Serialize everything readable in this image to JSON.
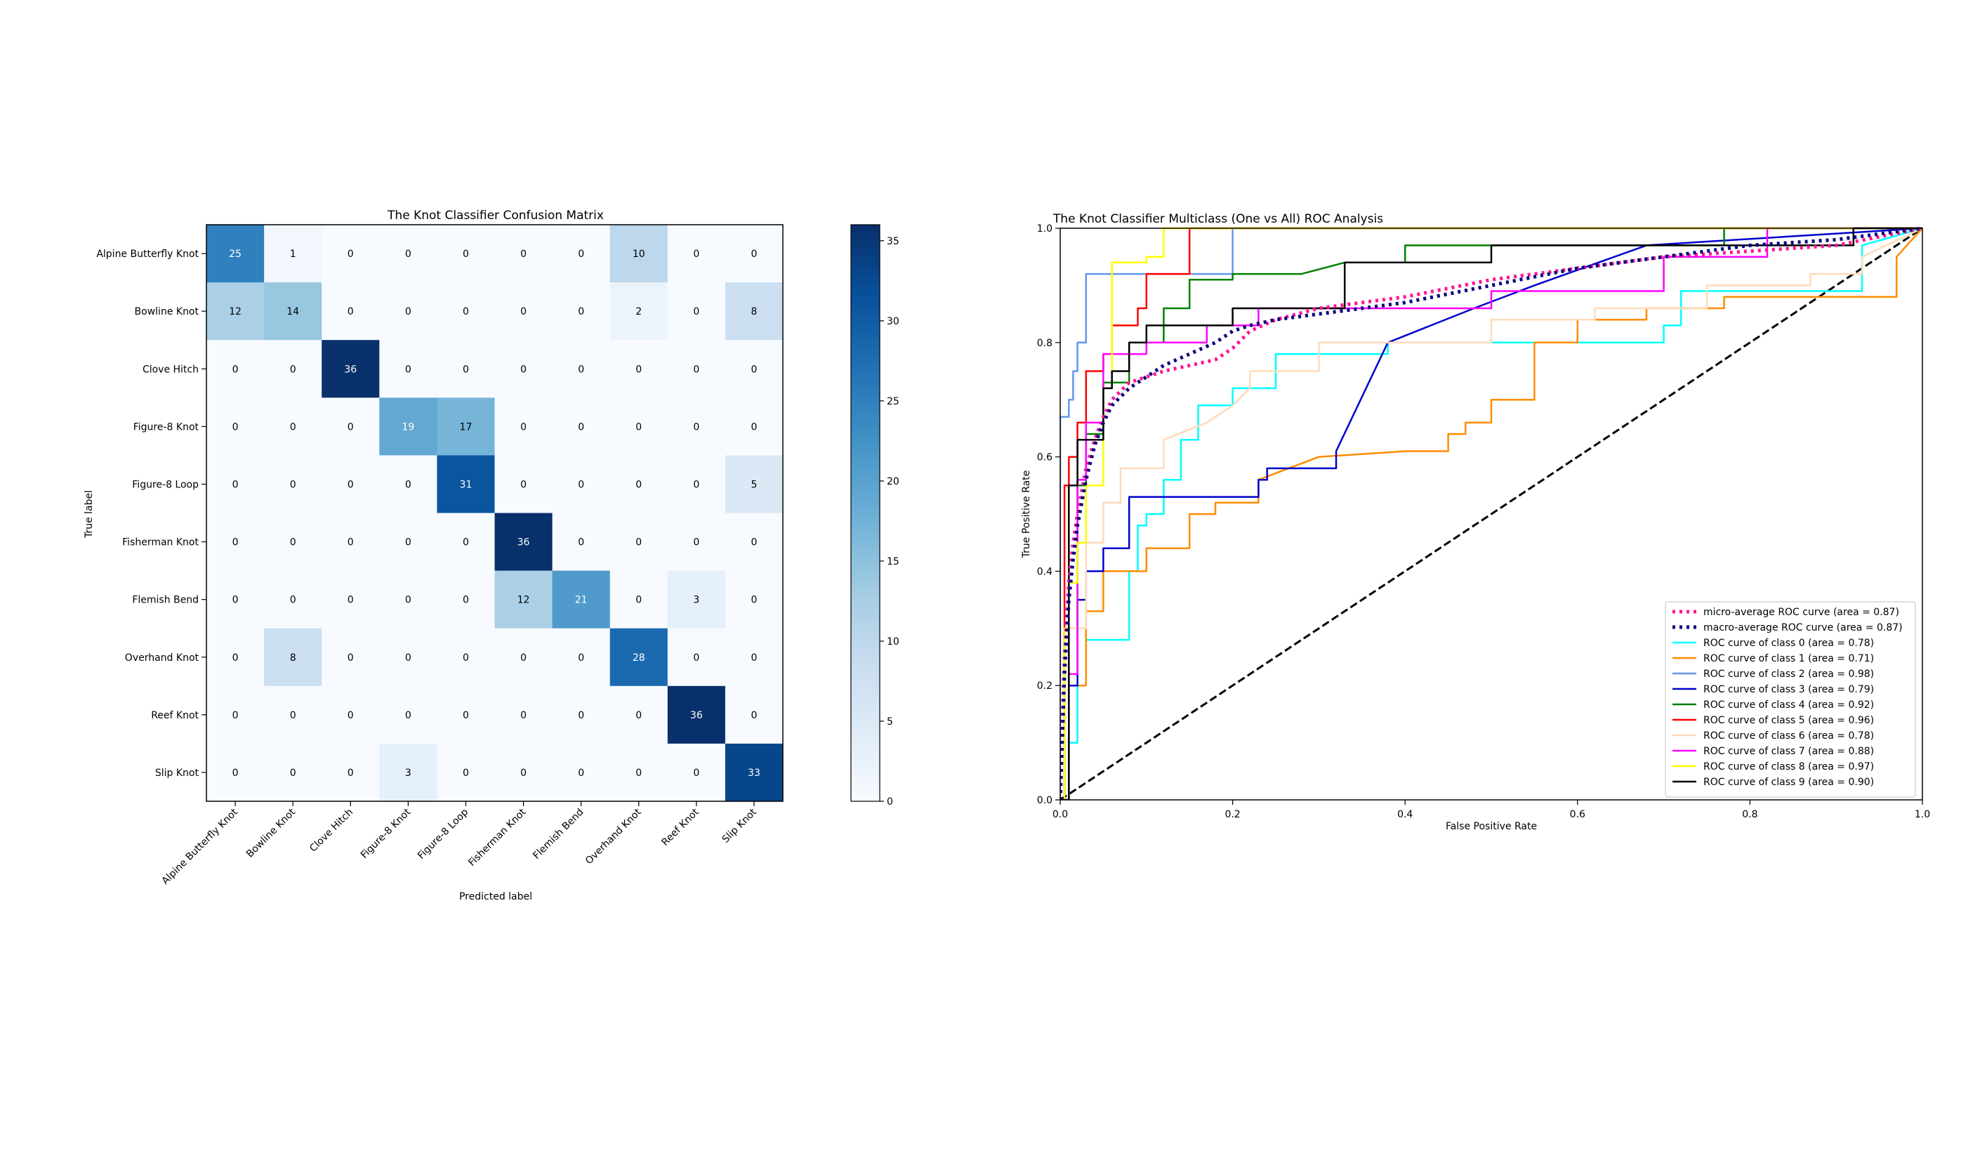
{
  "chart_data": [
    {
      "type": "heatmap",
      "title": "The Knot Classifier Confusion Matrix",
      "xlabel": "Predicted label",
      "ylabel": "True label",
      "categories": [
        "Alpine Butterfly Knot",
        "Bowline Knot",
        "Clove Hitch",
        "Figure-8 Knot",
        "Figure-8 Loop",
        "Fisherman Knot",
        "Flemish Bend",
        "Overhand Knot",
        "Reef Knot",
        "Slip Knot"
      ],
      "matrix": [
        [
          25,
          1,
          0,
          0,
          0,
          0,
          0,
          10,
          0,
          0
        ],
        [
          12,
          14,
          0,
          0,
          0,
          0,
          0,
          2,
          0,
          8
        ],
        [
          0,
          0,
          36,
          0,
          0,
          0,
          0,
          0,
          0,
          0
        ],
        [
          0,
          0,
          0,
          19,
          17,
          0,
          0,
          0,
          0,
          0
        ],
        [
          0,
          0,
          0,
          0,
          31,
          0,
          0,
          0,
          0,
          5
        ],
        [
          0,
          0,
          0,
          0,
          0,
          36,
          0,
          0,
          0,
          0
        ],
        [
          0,
          0,
          0,
          0,
          0,
          12,
          21,
          0,
          3,
          0
        ],
        [
          0,
          8,
          0,
          0,
          0,
          0,
          0,
          28,
          0,
          0
        ],
        [
          0,
          0,
          0,
          0,
          0,
          0,
          0,
          0,
          36,
          0
        ],
        [
          0,
          0,
          0,
          3,
          0,
          0,
          0,
          0,
          0,
          33
        ]
      ],
      "colormap": "Blues",
      "vmin": 0,
      "vmax": 36,
      "colorbar_ticks": [
        0,
        5,
        10,
        15,
        20,
        25,
        30,
        35
      ]
    },
    {
      "type": "line",
      "title": "The Knot Classifier Multiclass (One vs All) ROC Analysis",
      "xlabel": "False Positive Rate",
      "ylabel": "True Positive Rate",
      "xlim": [
        0.0,
        1.0
      ],
      "ylim": [
        0.0,
        1.0
      ],
      "xticks": [
        "0.0",
        "0.2",
        "0.4",
        "0.6",
        "0.8",
        "1.0"
      ],
      "yticks": [
        "0.0",
        "0.2",
        "0.4",
        "0.6",
        "0.8",
        "1.0"
      ],
      "legend_position": "lower right",
      "series": [
        {
          "name": "micro-average ROC curve (area = 0.87)",
          "color": "#ff1493",
          "style": "dotted",
          "width": 5,
          "x": [
            0,
            0.005,
            0.01,
            0.015,
            0.02,
            0.03,
            0.04,
            0.05,
            0.06,
            0.08,
            0.1,
            0.12,
            0.15,
            0.18,
            0.2,
            0.22,
            0.25,
            0.3,
            0.35,
            0.4,
            0.5,
            0.6,
            0.7,
            0.8,
            0.9,
            1.0
          ],
          "y": [
            0,
            0.25,
            0.38,
            0.45,
            0.5,
            0.58,
            0.63,
            0.67,
            0.7,
            0.73,
            0.74,
            0.75,
            0.76,
            0.77,
            0.79,
            0.82,
            0.84,
            0.86,
            0.87,
            0.88,
            0.91,
            0.93,
            0.95,
            0.96,
            0.97,
            1.0
          ]
        },
        {
          "name": "macro-average ROC curve (area = 0.87)",
          "color": "#000080",
          "style": "dotted",
          "width": 5,
          "x": [
            0,
            0.005,
            0.01,
            0.015,
            0.02,
            0.03,
            0.04,
            0.05,
            0.06,
            0.08,
            0.1,
            0.12,
            0.15,
            0.18,
            0.2,
            0.22,
            0.25,
            0.3,
            0.35,
            0.4,
            0.5,
            0.6,
            0.7,
            0.8,
            0.9,
            1.0
          ],
          "y": [
            0,
            0.22,
            0.35,
            0.42,
            0.48,
            0.56,
            0.62,
            0.66,
            0.69,
            0.72,
            0.74,
            0.76,
            0.78,
            0.8,
            0.82,
            0.83,
            0.84,
            0.85,
            0.86,
            0.87,
            0.9,
            0.93,
            0.95,
            0.97,
            0.98,
            1.0
          ]
        },
        {
          "name": "ROC curve of class 0 (area = 0.78)",
          "color": "#00ffff",
          "style": "solid",
          "width": 2.5,
          "x": [
            0,
            0.01,
            0.01,
            0.02,
            0.02,
            0.03,
            0.03,
            0.08,
            0.08,
            0.09,
            0.09,
            0.1,
            0.1,
            0.12,
            0.12,
            0.14,
            0.14,
            0.16,
            0.16,
            0.2,
            0.2,
            0.25,
            0.25,
            0.38,
            0.38,
            0.7,
            0.7,
            0.72,
            0.72,
            0.93,
            0.93,
            1.0
          ],
          "y": [
            0,
            0,
            0.1,
            0.1,
            0.2,
            0.2,
            0.28,
            0.28,
            0.4,
            0.4,
            0.48,
            0.48,
            0.5,
            0.5,
            0.56,
            0.56,
            0.63,
            0.63,
            0.69,
            0.69,
            0.72,
            0.72,
            0.78,
            0.78,
            0.8,
            0.8,
            0.83,
            0.83,
            0.89,
            0.89,
            0.97,
            1.0
          ]
        },
        {
          "name": "ROC curve of class 1 (area = 0.71)",
          "color": "#ff8c00",
          "style": "solid",
          "width": 2.5,
          "x": [
            0,
            0.01,
            0.01,
            0.03,
            0.03,
            0.05,
            0.05,
            0.1,
            0.1,
            0.15,
            0.15,
            0.18,
            0.18,
            0.23,
            0.23,
            0.3,
            0.4,
            0.45,
            0.45,
            0.47,
            0.47,
            0.5,
            0.5,
            0.55,
            0.55,
            0.6,
            0.6,
            0.68,
            0.68,
            0.77,
            0.77,
            0.97,
            0.97,
            1.0
          ],
          "y": [
            0,
            0,
            0.2,
            0.2,
            0.33,
            0.33,
            0.4,
            0.4,
            0.44,
            0.44,
            0.5,
            0.5,
            0.52,
            0.52,
            0.56,
            0.6,
            0.61,
            0.61,
            0.64,
            0.64,
            0.66,
            0.66,
            0.7,
            0.7,
            0.8,
            0.8,
            0.84,
            0.84,
            0.86,
            0.86,
            0.88,
            0.88,
            0.95,
            1.0
          ]
        },
        {
          "name": "ROC curve of class 2 (area = 0.98)",
          "color": "#6495ed",
          "style": "solid",
          "width": 2.5,
          "x": [
            0,
            0,
            0.01,
            0.01,
            0.015,
            0.015,
            0.02,
            0.02,
            0.03,
            0.03,
            0.2,
            0.2,
            1.0
          ],
          "y": [
            0,
            0.67,
            0.67,
            0.7,
            0.7,
            0.75,
            0.75,
            0.8,
            0.8,
            0.92,
            0.92,
            1.0,
            1.0
          ]
        },
        {
          "name": "ROC curve of class 3 (area = 0.79)",
          "color": "#0000cd",
          "style": "solid",
          "width": 2.5,
          "x": [
            0,
            0.01,
            0.01,
            0.02,
            0.02,
            0.03,
            0.03,
            0.05,
            0.05,
            0.08,
            0.08,
            0.23,
            0.23,
            0.24,
            0.24,
            0.32,
            0.32,
            0.38,
            0.38,
            0.43,
            0.43,
            0.48,
            0.48,
            0.55,
            0.55,
            0.68,
            0.68,
            1.0
          ],
          "y": [
            0,
            0,
            0.2,
            0.2,
            0.35,
            0.35,
            0.4,
            0.4,
            0.44,
            0.44,
            0.53,
            0.53,
            0.56,
            0.56,
            0.58,
            0.58,
            0.61,
            0.8,
            0.8,
            0.83,
            0.83,
            0.86,
            0.86,
            0.9,
            0.9,
            0.97,
            0.97,
            1.0
          ]
        },
        {
          "name": "ROC curve of class 4 (area = 0.92)",
          "color": "#008000",
          "style": "solid",
          "width": 2.5,
          "x": [
            0,
            0.005,
            0.005,
            0.02,
            0.02,
            0.03,
            0.03,
            0.05,
            0.05,
            0.08,
            0.08,
            0.12,
            0.12,
            0.15,
            0.15,
            0.2,
            0.2,
            0.28,
            0.33,
            0.4,
            0.4,
            0.77,
            0.77,
            1.0
          ],
          "y": [
            0,
            0,
            0.3,
            0.3,
            0.55,
            0.55,
            0.64,
            0.64,
            0.73,
            0.73,
            0.8,
            0.8,
            0.86,
            0.86,
            0.91,
            0.91,
            0.92,
            0.92,
            0.94,
            0.94,
            0.97,
            0.97,
            1.0,
            1.0
          ]
        },
        {
          "name": "ROC curve of class 5 (area = 0.96)",
          "color": "#ff0000",
          "style": "solid",
          "width": 2.5,
          "x": [
            0,
            0.005,
            0.005,
            0.01,
            0.01,
            0.02,
            0.02,
            0.03,
            0.03,
            0.05,
            0.05,
            0.06,
            0.06,
            0.09,
            0.09,
            0.1,
            0.1,
            0.15,
            0.15,
            1.0
          ],
          "y": [
            0,
            0,
            0.55,
            0.55,
            0.6,
            0.6,
            0.66,
            0.66,
            0.75,
            0.75,
            0.78,
            0.78,
            0.83,
            0.83,
            0.86,
            0.86,
            0.92,
            0.92,
            1.0,
            1.0
          ]
        },
        {
          "name": "ROC curve of class 6 (area = 0.78)",
          "color": "#ffdab9",
          "style": "solid",
          "width": 2.5,
          "x": [
            0,
            0.01,
            0.01,
            0.03,
            0.03,
            0.05,
            0.05,
            0.07,
            0.07,
            0.12,
            0.12,
            0.17,
            0.2,
            0.22,
            0.22,
            0.3,
            0.3,
            0.5,
            0.5,
            0.62,
            0.62,
            0.75,
            0.75,
            0.87,
            0.87,
            0.93,
            0.93,
            1.0
          ],
          "y": [
            0,
            0,
            0.3,
            0.3,
            0.45,
            0.45,
            0.52,
            0.52,
            0.58,
            0.58,
            0.63,
            0.66,
            0.69,
            0.72,
            0.75,
            0.75,
            0.8,
            0.8,
            0.84,
            0.84,
            0.86,
            0.86,
            0.9,
            0.9,
            0.92,
            0.92,
            0.95,
            1.0
          ]
        },
        {
          "name": "ROC curve of class 7 (area = 0.88)",
          "color": "#ff00ff",
          "style": "solid",
          "width": 2.5,
          "x": [
            0,
            0.01,
            0.01,
            0.02,
            0.02,
            0.03,
            0.03,
            0.05,
            0.05,
            0.1,
            0.1,
            0.17,
            0.17,
            0.23,
            0.23,
            0.5,
            0.5,
            0.7,
            0.7,
            0.82,
            0.82,
            1.0
          ],
          "y": [
            0,
            0,
            0.22,
            0.22,
            0.56,
            0.56,
            0.66,
            0.66,
            0.78,
            0.78,
            0.8,
            0.8,
            0.83,
            0.83,
            0.86,
            0.86,
            0.89,
            0.89,
            0.95,
            0.95,
            1.0,
            1.0
          ]
        },
        {
          "name": "ROC curve of class 8 (area = 0.97)",
          "color": "#ffff00",
          "style": "solid",
          "width": 2.5,
          "x": [
            0,
            0.005,
            0.005,
            0.01,
            0.01,
            0.02,
            0.02,
            0.03,
            0.03,
            0.05,
            0.05,
            0.06,
            0.06,
            0.1,
            0.1,
            0.12,
            0.12,
            1.0
          ],
          "y": [
            0,
            0,
            0.3,
            0.3,
            0.38,
            0.38,
            0.45,
            0.45,
            0.55,
            0.55,
            0.72,
            0.72,
            0.94,
            0.94,
            0.95,
            0.95,
            1.0,
            1.0
          ]
        },
        {
          "name": "ROC curve of class 9 (area = 0.90)",
          "color": "#000000",
          "style": "solid",
          "width": 2.5,
          "x": [
            0,
            0.01,
            0.01,
            0.02,
            0.02,
            0.05,
            0.05,
            0.06,
            0.06,
            0.08,
            0.08,
            0.1,
            0.1,
            0.2,
            0.2,
            0.33,
            0.33,
            0.5,
            0.5,
            0.92,
            0.92,
            1.0
          ],
          "y": [
            0,
            0,
            0.55,
            0.55,
            0.63,
            0.63,
            0.72,
            0.72,
            0.75,
            0.75,
            0.8,
            0.8,
            0.83,
            0.83,
            0.86,
            0.86,
            0.94,
            0.94,
            0.97,
            0.97,
            1.0,
            1.0
          ]
        },
        {
          "name": "",
          "color": "#000000",
          "style": "dashed",
          "width": 3,
          "x": [
            0,
            1
          ],
          "y": [
            0,
            1
          ]
        }
      ]
    }
  ]
}
